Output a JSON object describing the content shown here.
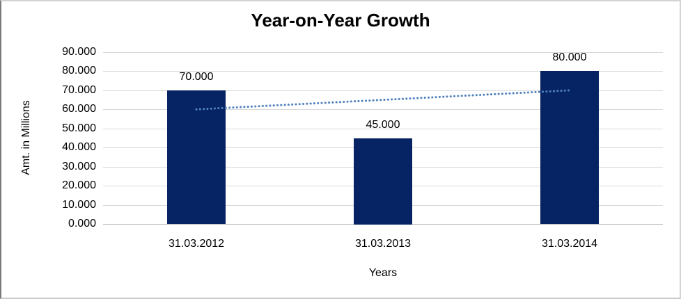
{
  "chart_data": {
    "type": "bar",
    "title": "Year-on-Year Growth",
    "xlabel": "Years",
    "ylabel": "Amt. in Millions",
    "categories": [
      "31.03.2012",
      "31.03.2013",
      "31.03.2014"
    ],
    "values": [
      70,
      45,
      80
    ],
    "value_labels": [
      "70.000",
      "45.000",
      "80.000"
    ],
    "ylim": [
      0,
      90
    ],
    "y_tick_step": 10,
    "y_tick_labels": [
      "0.000",
      "10.000",
      "20.000",
      "30.000",
      "40.000",
      "50.000",
      "60.000",
      "70.000",
      "80.000",
      "90.000"
    ],
    "grid": true,
    "legend": "none",
    "trendline": {
      "type": "linear",
      "values": [
        60,
        65,
        70
      ],
      "style": "dotted"
    },
    "colors": {
      "bar": "#062464",
      "trendline": "#4f81bd",
      "gridline": "#d9d9d9",
      "axis_line": "#b7b7b7",
      "text": "#000000",
      "background": "#ffffff"
    }
  }
}
